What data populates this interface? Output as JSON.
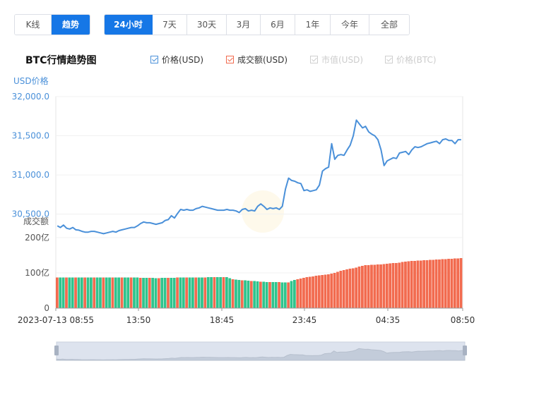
{
  "tabs_view": [
    {
      "label": "K线",
      "active": false
    },
    {
      "label": "趋势",
      "active": true
    }
  ],
  "tabs_range": [
    {
      "label": "24小时",
      "active": true
    },
    {
      "label": "7天",
      "active": false
    },
    {
      "label": "30天",
      "active": false
    },
    {
      "label": "3月",
      "active": false
    },
    {
      "label": "6月",
      "active": false
    },
    {
      "label": "1年",
      "active": false
    },
    {
      "label": "今年",
      "active": false
    },
    {
      "label": "全部",
      "active": false
    }
  ],
  "title": "BTC行情趋势图",
  "legend": [
    {
      "label": "价格(USD)",
      "checked": true,
      "color": "#4a90d9",
      "enabled": true
    },
    {
      "label": "成交额(USD)",
      "checked": true,
      "color": "#f26b4f",
      "enabled": true
    },
    {
      "label": "市值(USD)",
      "checked": true,
      "color": "#cfcfcf",
      "enabled": false
    },
    {
      "label": "价格(BTC)",
      "checked": true,
      "color": "#cfcfcf",
      "enabled": false
    }
  ],
  "colors": {
    "accent": "#1677e6",
    "price_line": "#4a90d9",
    "volume_up": "#f26b4f",
    "volume_down": "#2fc48d",
    "axis_label": "#4a90d9"
  },
  "chart_data": {
    "type": "line",
    "x_tick_labels": [
      "2023-07-13 08:55",
      "13:50",
      "18:45",
      "23:45",
      "04:35",
      "08:50"
    ],
    "price_axis": {
      "label": "USD价格",
      "ticks": [
        "30,500.0",
        "31,000.0",
        "31,500.0",
        "32,000.0"
      ],
      "ylim": [
        30200,
        32000
      ]
    },
    "volume_axis": {
      "label": "成交额",
      "ticks": [
        "0",
        "100亿",
        "200亿"
      ],
      "ylim": [
        0,
        200
      ]
    },
    "series": [
      {
        "name": "价格(USD)",
        "axis": "price",
        "values": [
          30350,
          30330,
          30360,
          30320,
          30310,
          30330,
          30300,
          30295,
          30280,
          30270,
          30270,
          30280,
          30280,
          30270,
          30260,
          30250,
          30260,
          30270,
          30280,
          30270,
          30290,
          30300,
          30310,
          30320,
          30330,
          30330,
          30350,
          30380,
          30400,
          30390,
          30390,
          30380,
          30370,
          30380,
          30390,
          30420,
          30430,
          30480,
          30450,
          30510,
          30560,
          30550,
          30560,
          30550,
          30550,
          30570,
          30580,
          30600,
          30590,
          30580,
          30570,
          30560,
          30550,
          30550,
          30550,
          30560,
          30550,
          30550,
          30540,
          30520,
          30560,
          30570,
          30540,
          30550,
          30540,
          30600,
          30630,
          30600,
          30560,
          30580,
          30570,
          30580,
          30560,
          30600,
          30820,
          30960,
          30930,
          30920,
          30900,
          30890,
          30800,
          30810,
          30790,
          30800,
          30810,
          30870,
          31050,
          31080,
          31100,
          31400,
          31200,
          31250,
          31260,
          31250,
          31320,
          31380,
          31500,
          31700,
          31650,
          31600,
          31620,
          31550,
          31520,
          31500,
          31450,
          31320,
          31120,
          31180,
          31200,
          31220,
          31210,
          31280,
          31290,
          31300,
          31260,
          31320,
          31360,
          31350,
          31360,
          31380,
          31400,
          31410,
          31420,
          31430,
          31400,
          31450,
          31460,
          31440,
          31440,
          31400,
          31450,
          31450
        ]
      },
      {
        "name": "成交额(USD)",
        "axis": "volume",
        "values": [
          87,
          87,
          87,
          87,
          87,
          87,
          87,
          87,
          87,
          87,
          87,
          87,
          87,
          87,
          87,
          87,
          87,
          87,
          87,
          87,
          87,
          87,
          87,
          87,
          87,
          87,
          87,
          86,
          86,
          86,
          86,
          86,
          85,
          85,
          86,
          86,
          86,
          86,
          86,
          87,
          87,
          87,
          87,
          87,
          87,
          87,
          87,
          87,
          87,
          88,
          88,
          88,
          88,
          88,
          88,
          88,
          85,
          82,
          81,
          80,
          79,
          79,
          78,
          77,
          77,
          76,
          75,
          75,
          74,
          74,
          74,
          74,
          74,
          73,
          73,
          73,
          77,
          80,
          82,
          84,
          86,
          88,
          89,
          90,
          92,
          93,
          94,
          95,
          96,
          98,
          100,
          103,
          106,
          108,
          110,
          112,
          113,
          115,
          118,
          120,
          122,
          122,
          123,
          123,
          124,
          124,
          125,
          126,
          127,
          128,
          128,
          129,
          131,
          132,
          133,
          134,
          134,
          135,
          135,
          136,
          136,
          137,
          137,
          138,
          138,
          139,
          139,
          140,
          140,
          141,
          141,
          142
        ]
      }
    ],
    "grid": true
  }
}
